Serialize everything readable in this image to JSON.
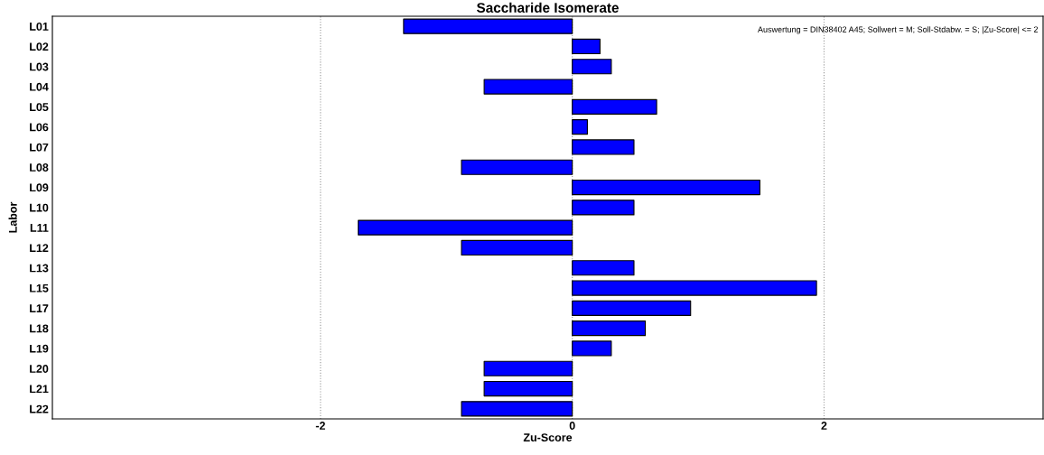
{
  "chart_data": {
    "type": "bar",
    "orientation": "horizontal",
    "title": "Saccharide Isomerate",
    "xlabel": "Zu-Score",
    "ylabel": "Labor",
    "categories": [
      "L01",
      "L02",
      "L03",
      "L04",
      "L05",
      "L06",
      "L07",
      "L08",
      "L09",
      "L10",
      "L11",
      "L12",
      "L13",
      "L15",
      "L17",
      "L18",
      "L19",
      "L20",
      "L21",
      "L22"
    ],
    "values": [
      -1.34,
      0.22,
      0.31,
      -0.7,
      0.67,
      0.12,
      0.49,
      -0.88,
      1.49,
      0.49,
      -1.7,
      -0.88,
      0.49,
      1.94,
      0.94,
      0.58,
      0.31,
      -0.7,
      -0.7,
      -0.88
    ],
    "color": "#0000ff",
    "xlim": [
      -4.13,
      3.74
    ],
    "xticks": [
      -2,
      0,
      2
    ],
    "grid": "x",
    "annotations": [
      "Auswertung = DIN38402 A45; Sollwert = M; Soll-Stdabw. = S; |Zu-Score| <= 2"
    ]
  }
}
